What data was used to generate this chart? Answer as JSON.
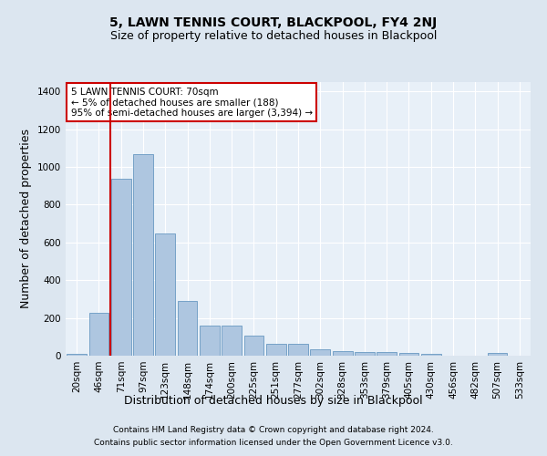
{
  "title": "5, LAWN TENNIS COURT, BLACKPOOL, FY4 2NJ",
  "subtitle": "Size of property relative to detached houses in Blackpool",
  "xlabel": "Distribution of detached houses by size in Blackpool",
  "ylabel": "Number of detached properties",
  "categories": [
    "20sqm",
    "46sqm",
    "71sqm",
    "97sqm",
    "123sqm",
    "148sqm",
    "174sqm",
    "200sqm",
    "225sqm",
    "251sqm",
    "277sqm",
    "302sqm",
    "328sqm",
    "353sqm",
    "379sqm",
    "405sqm",
    "430sqm",
    "456sqm",
    "482sqm",
    "507sqm",
    "533sqm"
  ],
  "values": [
    10,
    225,
    940,
    1070,
    650,
    290,
    160,
    160,
    105,
    65,
    65,
    33,
    25,
    20,
    20,
    15,
    12,
    0,
    0,
    15,
    0
  ],
  "bar_color": "#aec6e0",
  "bar_edge_color": "#6899c2",
  "vline_color": "#cc0000",
  "vline_x": 1.5,
  "annotation_text": "5 LAWN TENNIS COURT: 70sqm\n← 5% of detached houses are smaller (188)\n95% of semi-detached houses are larger (3,394) →",
  "annotation_box_color": "#ffffff",
  "annotation_box_edge_color": "#cc0000",
  "ylim": [
    0,
    1450
  ],
  "yticks": [
    0,
    200,
    400,
    600,
    800,
    1000,
    1200,
    1400
  ],
  "footer_line1": "Contains HM Land Registry data © Crown copyright and database right 2024.",
  "footer_line2": "Contains public sector information licensed under the Open Government Licence v3.0.",
  "bg_color": "#dce6f0",
  "plot_bg_color": "#e8f0f8",
  "title_fontsize": 10,
  "subtitle_fontsize": 9,
  "axis_label_fontsize": 9,
  "tick_fontsize": 7.5,
  "annotation_fontsize": 7.5,
  "footer_fontsize": 6.5
}
